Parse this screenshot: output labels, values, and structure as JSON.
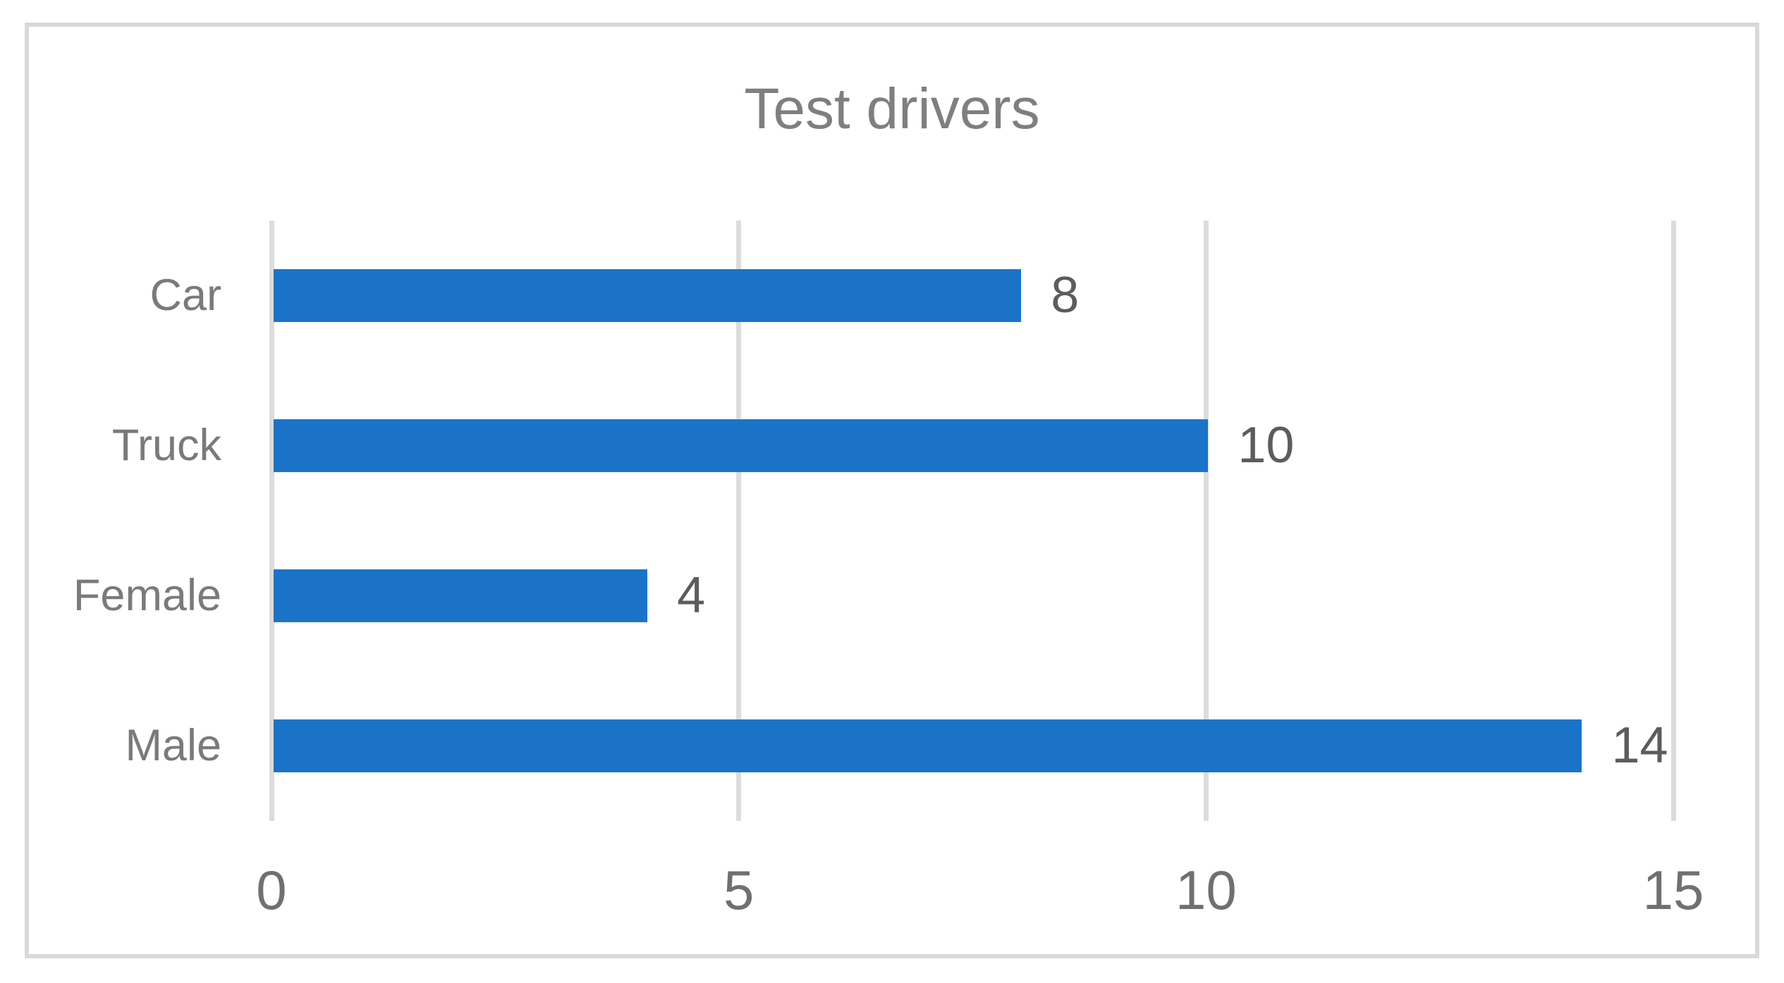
{
  "chart_data": {
    "type": "bar",
    "orientation": "horizontal",
    "title": "Test drivers",
    "categories": [
      "Car",
      "Truck",
      "Female",
      "Male"
    ],
    "values": [
      8,
      10,
      4,
      14
    ],
    "data_labels": [
      "8",
      "10",
      "4",
      "14"
    ],
    "x_ticks": [
      0,
      5,
      10,
      15
    ],
    "x_tick_labels": [
      "0",
      "5",
      "10",
      "15"
    ],
    "xlim": [
      0,
      15
    ],
    "xlabel": "",
    "ylabel": "",
    "grid": "vertical-major",
    "legend": "none",
    "colors": {
      "bar": "#1B73C8",
      "gridline": "#DCDCDC",
      "frame_border": "#D9D9D9",
      "background": "#FFFFFF",
      "title_text": "#7F7F7F",
      "category_text": "#7A7A7A",
      "tick_text": "#707070",
      "data_label_text": "#5C5C5C"
    }
  }
}
